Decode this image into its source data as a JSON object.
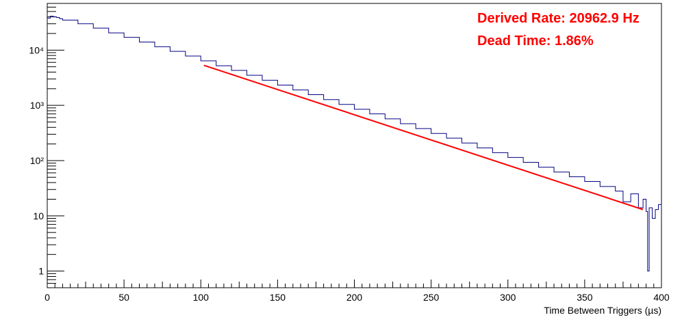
{
  "chart_data": {
    "type": "line",
    "title": "",
    "xlabel": "Time Between Triggers (µs)",
    "ylabel": "",
    "xlim": [
      0,
      400
    ],
    "ylim": [
      0.5,
      70000
    ],
    "yscale": "log",
    "grid": false,
    "legend": "none",
    "colors": {
      "histogram": "#000080",
      "fit": "#ff0000",
      "annotation": "#ff0000"
    },
    "xticks": [
      0,
      50,
      100,
      150,
      200,
      250,
      300,
      350,
      400
    ],
    "xtick_labels": [
      "0",
      "50",
      "100",
      "150",
      "200",
      "250",
      "300",
      "350",
      "400"
    ],
    "yticks": [
      1,
      10,
      100,
      1000,
      10000
    ],
    "ytick_labels": [
      "1",
      "10",
      "10²",
      "10³",
      "10⁴"
    ],
    "annotations": [
      "Derived Rate: 20962.9 Hz",
      "Dead Time: 1.86%"
    ],
    "series": [
      {
        "kind": "histogram",
        "x": [
          0,
          2,
          4,
          6,
          8,
          10,
          20,
          30,
          40,
          50,
          60,
          70,
          80,
          90,
          100,
          110,
          120,
          130,
          140,
          150,
          160,
          170,
          180,
          190,
          200,
          210,
          220,
          230,
          240,
          250,
          260,
          270,
          280,
          290,
          300,
          310,
          320,
          330,
          340,
          350,
          360,
          370,
          375,
          380,
          385,
          388,
          390,
          391,
          392,
          394,
          396,
          398,
          400
        ],
        "y": [
          38000,
          41000,
          40000,
          39000,
          37000,
          35000,
          30000,
          25000,
          20500,
          17000,
          14000,
          11500,
          9500,
          7800,
          6400,
          5200,
          4300,
          3500,
          2850,
          2330,
          1900,
          1560,
          1270,
          1040,
          850,
          700,
          570,
          465,
          380,
          310,
          255,
          208,
          170,
          139,
          114,
          93,
          76,
          62,
          51,
          42,
          34,
          28,
          18,
          25,
          14,
          20,
          12,
          1,
          14,
          9,
          13,
          16,
          14
        ]
      },
      {
        "kind": "fit",
        "x_range": [
          102,
          388
        ],
        "y_at_range": [
          5300,
          13
        ]
      }
    ]
  }
}
